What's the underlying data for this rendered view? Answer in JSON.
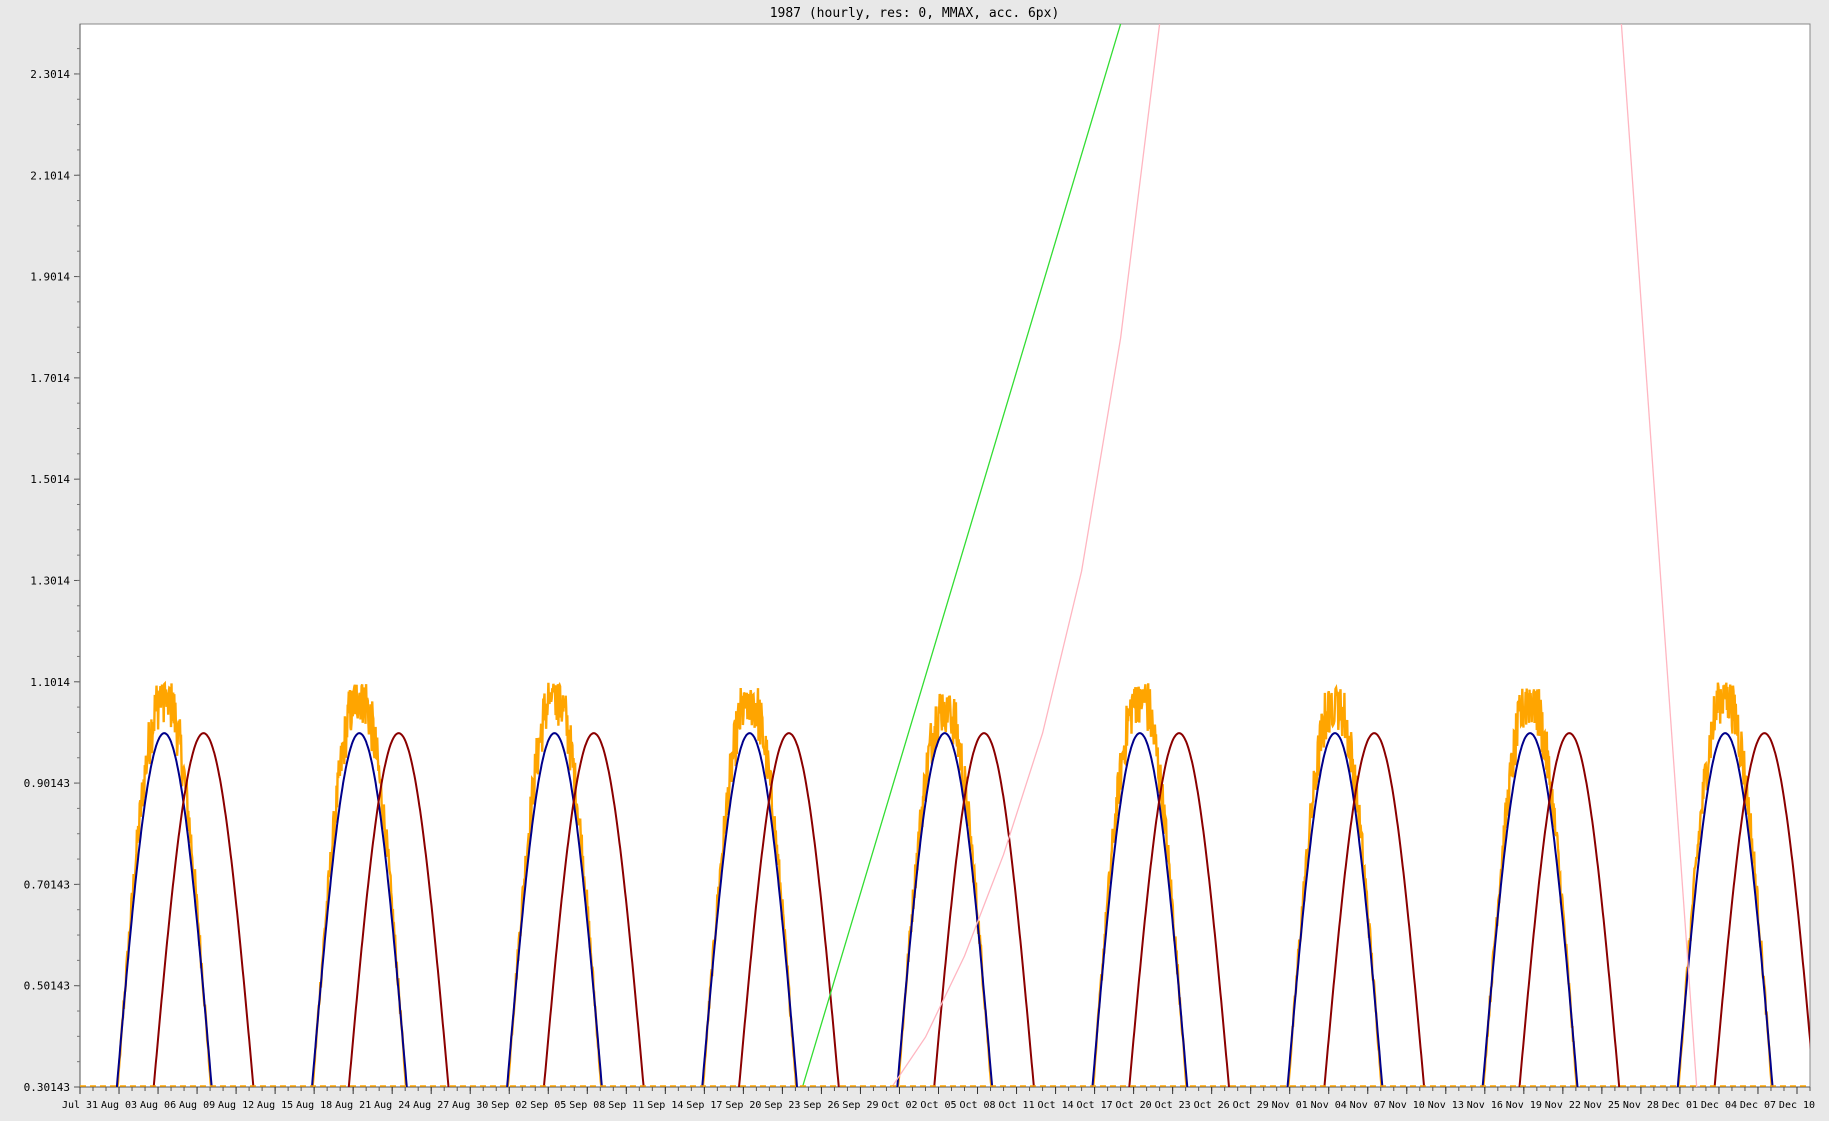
{
  "chart_data": {
    "type": "line",
    "title": "1987 (hourly, res: 0, MMAX, acc. 6px)",
    "xlabel": "",
    "ylabel": "",
    "x_range": [
      "1987-07-31",
      "1987-12-11"
    ],
    "ylim": [
      0.30143,
      2.4
    ],
    "y_ticks": [
      0.30143,
      0.50143,
      0.70143,
      0.90143,
      1.1014,
      1.3014,
      1.5014,
      1.7014,
      1.9014,
      2.1014,
      2.3014
    ],
    "y_tick_labels": [
      "0.30143",
      "0.50143",
      "0.70143",
      "0.90143",
      "1.1014",
      "1.3014",
      "1.5014",
      "1.7014",
      "1.9014",
      "2.1014",
      "2.3014"
    ],
    "x_ticks": [
      {
        "date": "1987-07-31",
        "label": "Jul 31"
      },
      {
        "date": "1987-08-03",
        "label": "Aug 03"
      },
      {
        "date": "1987-08-06",
        "label": "Aug 06"
      },
      {
        "date": "1987-08-09",
        "label": "Aug 09"
      },
      {
        "date": "1987-08-12",
        "label": "Aug 12"
      },
      {
        "date": "1987-08-15",
        "label": "Aug 15"
      },
      {
        "date": "1987-08-18",
        "label": "Aug 18"
      },
      {
        "date": "1987-08-21",
        "label": "Aug 21"
      },
      {
        "date": "1987-08-24",
        "label": "Aug 24"
      },
      {
        "date": "1987-08-27",
        "label": "Aug 27"
      },
      {
        "date": "1987-08-30",
        "label": "Aug 30"
      },
      {
        "date": "1987-09-02",
        "label": "Sep 02"
      },
      {
        "date": "1987-09-05",
        "label": "Sep 05"
      },
      {
        "date": "1987-09-08",
        "label": "Sep 08"
      },
      {
        "date": "1987-09-11",
        "label": "Sep 11"
      },
      {
        "date": "1987-09-14",
        "label": "Sep 14"
      },
      {
        "date": "1987-09-17",
        "label": "Sep 17"
      },
      {
        "date": "1987-09-20",
        "label": "Sep 20"
      },
      {
        "date": "1987-09-23",
        "label": "Sep 23"
      },
      {
        "date": "1987-09-26",
        "label": "Sep 26"
      },
      {
        "date": "1987-09-29",
        "label": "Sep 29"
      },
      {
        "date": "1987-10-02",
        "label": "Oct 02"
      },
      {
        "date": "1987-10-05",
        "label": "Oct 05"
      },
      {
        "date": "1987-10-08",
        "label": "Oct 08"
      },
      {
        "date": "1987-10-11",
        "label": "Oct 11"
      },
      {
        "date": "1987-10-14",
        "label": "Oct 14"
      },
      {
        "date": "1987-10-17",
        "label": "Oct 17"
      },
      {
        "date": "1987-10-20",
        "label": "Oct 20"
      },
      {
        "date": "1987-10-23",
        "label": "Oct 23"
      },
      {
        "date": "1987-10-26",
        "label": "Oct 26"
      },
      {
        "date": "1987-10-29",
        "label": "Oct 29"
      },
      {
        "date": "1987-11-01",
        "label": "Nov 01"
      },
      {
        "date": "1987-11-04",
        "label": "Nov 04"
      },
      {
        "date": "1987-11-07",
        "label": "Nov 07"
      },
      {
        "date": "1987-11-10",
        "label": "Nov 10"
      },
      {
        "date": "1987-11-13",
        "label": "Nov 13"
      },
      {
        "date": "1987-11-16",
        "label": "Nov 16"
      },
      {
        "date": "1987-11-19",
        "label": "Nov 19"
      },
      {
        "date": "1987-11-22",
        "label": "Nov 22"
      },
      {
        "date": "1987-11-25",
        "label": "Nov 25"
      },
      {
        "date": "1987-11-28",
        "label": "Nov 28"
      },
      {
        "date": "1987-12-01",
        "label": "Dec 01"
      },
      {
        "date": "1987-12-04",
        "label": "Dec 04"
      },
      {
        "date": "1987-12-07",
        "label": "Dec 07"
      },
      {
        "date": "1987-12-10",
        "label": "Dec 10"
      }
    ],
    "grid": false,
    "legend": "none",
    "series": [
      {
        "color": "#ffa500",
        "style": "noisy",
        "note_kind": "arches",
        "arches": [
          {
            "start": "1987-08-02T20:00",
            "end": "1987-08-10T03:00",
            "peak": 1.1
          },
          {
            "start": "1987-08-17T20:00",
            "end": "1987-08-25T03:00",
            "peak": 1.1
          },
          {
            "start": "1987-09-01T20:00",
            "end": "1987-09-09T03:00",
            "peak": 1.1
          },
          {
            "start": "1987-09-16T20:00",
            "end": "1987-09-24T03:00",
            "peak": 1.09
          },
          {
            "start": "1987-10-01T20:00",
            "end": "1987-10-09T03:00",
            "peak": 1.08
          },
          {
            "start": "1987-10-16T20:00",
            "end": "1987-10-24T03:00",
            "peak": 1.1
          },
          {
            "start": "1987-10-31T20:00",
            "end": "1987-11-08T03:00",
            "peak": 1.09
          },
          {
            "start": "1987-11-15T20:00",
            "end": "1987-11-23T03:00",
            "peak": 1.09
          },
          {
            "start": "1987-11-30T20:00",
            "end": "1987-12-08T03:00",
            "peak": 1.1
          }
        ]
      },
      {
        "color": "#00008b",
        "style": "smooth",
        "arches": [
          {
            "start": "1987-08-02T20:00",
            "end": "1987-08-10T03:00",
            "peak": 1.0
          },
          {
            "start": "1987-08-17T20:00",
            "end": "1987-08-25T03:00",
            "peak": 1.0
          },
          {
            "start": "1987-09-01T20:00",
            "end": "1987-09-09T03:00",
            "peak": 1.0
          },
          {
            "start": "1987-09-16T20:00",
            "end": "1987-09-24T03:00",
            "peak": 1.0
          },
          {
            "start": "1987-10-01T20:00",
            "end": "1987-10-09T03:00",
            "peak": 1.0
          },
          {
            "start": "1987-10-16T20:00",
            "end": "1987-10-24T03:00",
            "peak": 1.0
          },
          {
            "start": "1987-10-31T20:00",
            "end": "1987-11-08T03:00",
            "peak": 1.0
          },
          {
            "start": "1987-11-15T20:00",
            "end": "1987-11-23T03:00",
            "peak": 1.0
          },
          {
            "start": "1987-11-30T20:00",
            "end": "1987-12-08T03:00",
            "peak": 1.0
          }
        ]
      },
      {
        "color": "#8b0000",
        "style": "smooth",
        "arches": [
          {
            "start": "1987-08-05T16:00",
            "end": "1987-08-13T08:00",
            "peak": 1.0
          },
          {
            "start": "1987-08-20T16:00",
            "end": "1987-08-28T08:00",
            "peak": 1.0
          },
          {
            "start": "1987-09-04T16:00",
            "end": "1987-09-12T08:00",
            "peak": 1.0
          },
          {
            "start": "1987-09-19T16:00",
            "end": "1987-09-27T08:00",
            "peak": 1.0
          },
          {
            "start": "1987-10-04T16:00",
            "end": "1987-10-12T08:00",
            "peak": 1.0
          },
          {
            "start": "1987-10-19T16:00",
            "end": "1987-10-27T08:00",
            "peak": 1.0
          },
          {
            "start": "1987-11-03T16:00",
            "end": "1987-11-11T08:00",
            "peak": 1.0
          },
          {
            "start": "1987-11-18T16:00",
            "end": "1987-11-26T08:00",
            "peak": 1.0
          },
          {
            "start": "1987-12-03T16:00",
            "end": "1987-12-11T08:00",
            "peak": 1.0
          }
        ]
      },
      {
        "color": "#33dd33",
        "style": "line",
        "points": [
          {
            "x": "1987-09-24T13:00",
            "y": 0.30143
          },
          {
            "x": "1987-10-19T00:00",
            "y": 2.4
          }
        ]
      },
      {
        "color": "#ffb6c1",
        "style": "line",
        "points": [
          {
            "x": "1987-10-01T10:00",
            "y": 0.30143
          },
          {
            "x": "1987-10-04T00:00",
            "y": 0.4
          },
          {
            "x": "1987-10-07T00:00",
            "y": 0.56
          },
          {
            "x": "1987-10-10T00:00",
            "y": 0.76
          },
          {
            "x": "1987-10-13T00:00",
            "y": 1.0
          },
          {
            "x": "1987-10-16T00:00",
            "y": 1.32
          },
          {
            "x": "1987-10-19T00:00",
            "y": 1.78
          },
          {
            "x": "1987-10-22T00:00",
            "y": 2.4
          }
        ]
      },
      {
        "color": "#ffb6c1",
        "style": "line",
        "points": [
          {
            "x": "1987-11-26T12:00",
            "y": 2.4
          },
          {
            "x": "1987-12-02T07:00",
            "y": 0.30143
          }
        ]
      }
    ]
  }
}
